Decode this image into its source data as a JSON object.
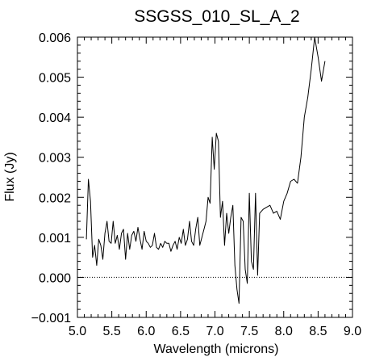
{
  "chart_data": {
    "type": "line",
    "title": "SSGSS_010_SL_A_2",
    "xlabel": "Wavelength (microns)",
    "ylabel": "Flux (Jy)",
    "xlim": [
      5.0,
      9.0
    ],
    "ylim": [
      -0.001,
      0.006
    ],
    "xticks": [
      5.0,
      5.5,
      6.0,
      6.5,
      7.0,
      7.5,
      8.0,
      8.5,
      9.0
    ],
    "xtick_labels": [
      "5.0",
      "5.5",
      "6.0",
      "6.5",
      "7.0",
      "7.5",
      "8.0",
      "8.5",
      "9.0"
    ],
    "yticks": [
      -0.001,
      0.0,
      0.001,
      0.002,
      0.003,
      0.004,
      0.005,
      0.006
    ],
    "ytick_labels": [
      "−0.001",
      "0.000",
      "0.001",
      "0.002",
      "0.003",
      "0.004",
      "0.005",
      "0.006"
    ],
    "reference_line": {
      "y": 0.0,
      "style": "dotted"
    },
    "grid": false,
    "legend": "none",
    "series": [
      {
        "color": "#000000",
        "x": [
          5.13,
          5.16,
          5.19,
          5.22,
          5.25,
          5.28,
          5.31,
          5.34,
          5.37,
          5.4,
          5.43,
          5.46,
          5.49,
          5.52,
          5.55,
          5.58,
          5.61,
          5.64,
          5.67,
          5.7,
          5.73,
          5.76,
          5.79,
          5.82,
          5.85,
          5.88,
          5.91,
          5.94,
          5.97,
          6.0,
          6.03,
          6.06,
          6.09,
          6.12,
          6.15,
          6.18,
          6.21,
          6.24,
          6.27,
          6.3,
          6.33,
          6.36,
          6.39,
          6.42,
          6.45,
          6.48,
          6.51,
          6.54,
          6.57,
          6.6,
          6.63,
          6.66,
          6.69,
          6.72,
          6.75,
          6.78,
          6.81,
          6.84,
          6.87,
          6.9,
          6.93,
          6.96,
          6.99,
          7.02,
          7.05,
          7.08,
          7.11,
          7.14,
          7.17,
          7.2,
          7.23,
          7.26,
          7.29,
          7.32,
          7.35,
          7.38,
          7.41,
          7.44,
          7.47,
          7.5,
          7.53,
          7.56,
          7.59,
          7.62,
          7.65,
          7.7,
          7.75,
          7.8,
          7.85,
          7.9,
          7.95,
          8.0,
          8.05,
          8.1,
          8.15,
          8.2,
          8.25,
          8.3,
          8.35,
          8.4,
          8.45,
          8.5,
          8.55,
          8.6
        ],
        "values": [
          0.00095,
          0.00245,
          0.0019,
          0.0005,
          0.0008,
          0.0003,
          0.00095,
          0.0008,
          0.00045,
          0.0011,
          0.0014,
          0.0009,
          0.00085,
          0.0014,
          0.00085,
          0.00105,
          0.0007,
          0.0011,
          0.0012,
          0.00045,
          0.0011,
          0.0007,
          0.00105,
          0.00115,
          0.0009,
          0.00125,
          0.00095,
          0.0007,
          0.00115,
          0.0009,
          0.00085,
          0.00075,
          0.0008,
          0.0011,
          0.00075,
          0.0007,
          0.00085,
          0.00075,
          0.0009,
          0.00085,
          0.00085,
          0.00065,
          0.0008,
          0.0009,
          0.0007,
          0.001,
          0.00085,
          0.0012,
          0.0008,
          0.00095,
          0.0014,
          0.0009,
          0.0008,
          0.0012,
          0.0015,
          0.0008,
          0.001,
          0.0012,
          0.0014,
          0.002,
          0.00185,
          0.0035,
          0.0027,
          0.0036,
          0.0034,
          0.0015,
          0.0019,
          0.0008,
          0.0016,
          0.0011,
          0.0015,
          0.0018,
          0.0003,
          -0.0003,
          -0.00065,
          0.0015,
          0.0014,
          0.0002,
          -0.00015,
          0.0021,
          0.0004,
          0.0002,
          0.0021,
          5e-05,
          0.0016,
          0.0017,
          0.00175,
          0.0018,
          0.0016,
          0.00165,
          0.00145,
          0.0019,
          0.0021,
          0.0024,
          0.00245,
          0.00235,
          0.003,
          0.004,
          0.0045,
          0.0052,
          0.006,
          0.0055,
          0.0049,
          0.0054
        ]
      }
    ]
  }
}
